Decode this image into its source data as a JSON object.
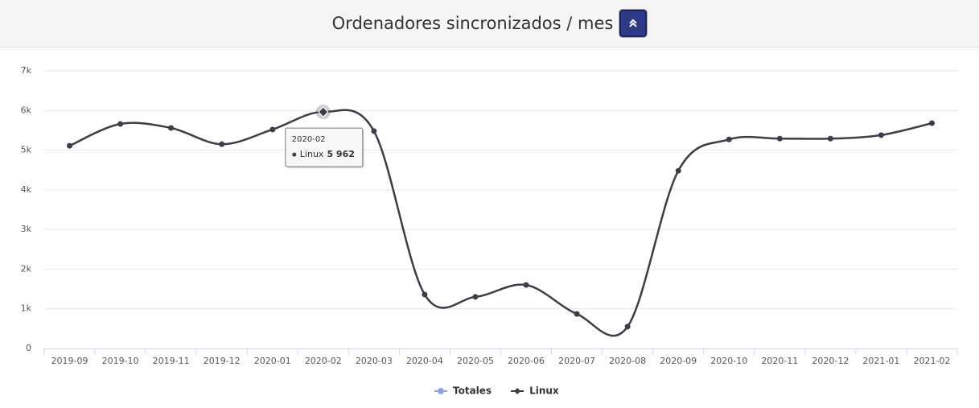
{
  "chart_data": {
    "type": "line",
    "title": "Ordenadores sincronizados / mes",
    "categories": [
      "2019-09",
      "2019-10",
      "2019-11",
      "2019-12",
      "2020-01",
      "2020-02",
      "2020-03",
      "2020-04",
      "2020-05",
      "2020-06",
      "2020-07",
      "2020-08",
      "2020-09",
      "2020-10",
      "2020-11",
      "2020-12",
      "2021-01",
      "2021-02"
    ],
    "series": [
      {
        "name": "Totales",
        "color": "#8fa3ee",
        "values": [
          null,
          null,
          null,
          null,
          null,
          null,
          null,
          null,
          null,
          null,
          null,
          null,
          null,
          null,
          null,
          null,
          null,
          null
        ]
      },
      {
        "name": "Linux",
        "color": "#3d3d4a",
        "values": [
          5110,
          5660,
          5560,
          5150,
          5520,
          5962,
          5480,
          1360,
          1300,
          1600,
          870,
          550,
          4480,
          5270,
          5290,
          5290,
          5380,
          5680
        ],
        "value_labels": [
          null,
          null,
          null,
          null,
          null,
          "5 962",
          null,
          null,
          null,
          null,
          null,
          null,
          null,
          null,
          null,
          null,
          null,
          null
        ]
      }
    ],
    "ylim": [
      0,
      7000
    ],
    "yticks": [
      0,
      {
        "value": 1000,
        "label": "1k"
      },
      {
        "value": 2000,
        "label": "2k"
      },
      {
        "value": 3000,
        "label": "3k"
      },
      {
        "value": 4000,
        "label": "4k"
      },
      {
        "value": 5000,
        "label": "5k"
      },
      {
        "value": 6000,
        "label": "6k"
      },
      {
        "value": 7000,
        "label": "7k"
      }
    ],
    "grid": true,
    "legend": "bottom"
  }
}
